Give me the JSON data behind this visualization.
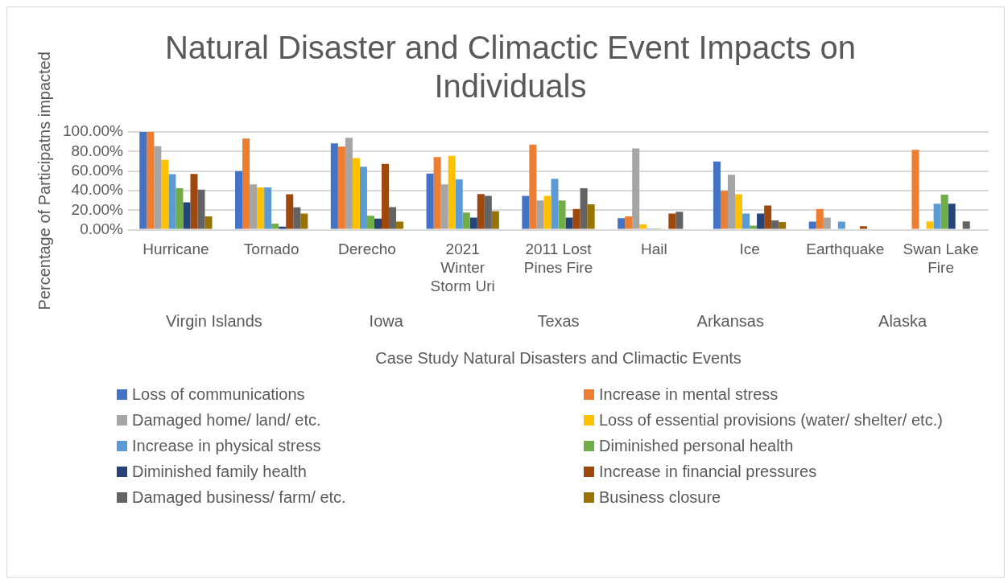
{
  "chart_data": {
    "type": "bar",
    "title": "Natural Disaster and Climactic Event Impacts on Individuals",
    "xlabel": "Case Study Natural Disasters and Climactic Events",
    "ylabel": "Percentage of Participatns impacted",
    "categories": [
      "Hurricane",
      "Tornado",
      "Derecho",
      "2021 Winter Storm Uri",
      "2011 Lost Pines Fire",
      "Hail",
      "Ice",
      "Earthquake",
      "Swan Lake Fire"
    ],
    "annotations": [
      "Virgin Islands",
      "Iowa",
      "Texas",
      "Arkansas",
      "Alaska"
    ],
    "series": [
      {
        "name": "Loss of communications",
        "color": "#4472c4",
        "values": [
          100,
          60,
          88.3,
          57.5,
          34.6,
          11.7,
          69.8,
          8.3,
          0
        ]
      },
      {
        "name": "Increase in mental stress",
        "color": "#ed7d31",
        "values": [
          100,
          93.3,
          85,
          74.3,
          87,
          13.7,
          39.7,
          21.3,
          81.6
        ]
      },
      {
        "name": "Damaged home/ land/ etc.",
        "color": "#a5a5a5",
        "values": [
          85.4,
          46.3,
          94,
          46.3,
          29.8,
          83.2,
          56.2,
          12.4,
          0
        ]
      },
      {
        "name": "Loss of essential provisions (water/ shelter/ etc.)",
        "color": "#ffc000",
        "values": [
          71.4,
          43.2,
          73.3,
          75.6,
          34.6,
          5.4,
          36.2,
          0,
          8.6
        ]
      },
      {
        "name": "Increase in physical stress",
        "color": "#5b9bd5",
        "values": [
          56.8,
          43.2,
          64.4,
          51.4,
          52,
          1.3,
          16.5,
          8.3,
          26.7
        ]
      },
      {
        "name": "Diminished personal health",
        "color": "#70ad47",
        "values": [
          42.5,
          6.3,
          14.3,
          17.5,
          29.8,
          1.3,
          4.1,
          0,
          35.9
        ]
      },
      {
        "name": "Diminished family health",
        "color": "#264478",
        "values": [
          28,
          3.2,
          11.4,
          12.4,
          12.4,
          0,
          16.5,
          0,
          26.7
        ]
      },
      {
        "name": "Increase in financial pressures",
        "color": "#9e480e",
        "values": [
          57,
          36.2,
          67.3,
          36.5,
          21.3,
          16.5,
          24.8,
          3.5,
          0
        ]
      },
      {
        "name": "Damaged business/ farm/ etc.",
        "color": "#636363",
        "values": [
          41,
          22.9,
          23.2,
          34.6,
          42.5,
          18.4,
          9.5,
          0,
          8.6
        ]
      },
      {
        "name": "Business closure",
        "color": "#997300",
        "values": [
          13.7,
          16.5,
          8.3,
          19,
          26,
          0,
          7.9,
          0,
          0
        ]
      }
    ],
    "ylim": [
      0,
      100
    ],
    "yticks": [
      {
        "value": 0,
        "label": "0.00%"
      },
      {
        "value": 20,
        "label": "20.00%"
      },
      {
        "value": 40,
        "label": "40.00%"
      },
      {
        "value": 60,
        "label": "60.00%"
      },
      {
        "value": 80,
        "label": "80.00%"
      },
      {
        "value": 100,
        "label": "100.00%"
      }
    ],
    "grid": "y",
    "legend": "bottom"
  }
}
